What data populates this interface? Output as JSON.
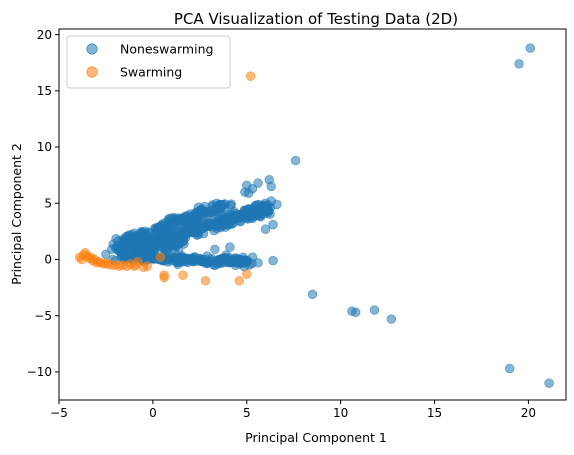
{
  "chart_data": {
    "type": "scatter",
    "title": "PCA Visualization of Testing Data (2D)",
    "xlabel": "Principal Component 1",
    "ylabel": "Principal Component 2",
    "xlim": [
      -5,
      22
    ],
    "ylim": [
      -12.5,
      20.5
    ],
    "xticks": [
      -5,
      0,
      5,
      10,
      15,
      20
    ],
    "yticks": [
      -10,
      -5,
      0,
      5,
      10,
      15,
      20
    ],
    "grid": false,
    "legend_position": "top-left",
    "series": [
      {
        "name": "Noneswarming",
        "color": "#1f77b4",
        "opacity": 0.55,
        "points": [
          [
            20.1,
            18.8
          ],
          [
            19.5,
            17.4
          ],
          [
            7.6,
            8.8
          ],
          [
            6.2,
            7.1
          ],
          [
            6.3,
            6.5
          ],
          [
            5.6,
            6.8
          ],
          [
            5.0,
            6.6
          ],
          [
            5.3,
            6.3
          ],
          [
            4.9,
            6.0
          ],
          [
            6.6,
            4.9
          ],
          [
            6.3,
            5.2
          ],
          [
            6.0,
            5.0
          ],
          [
            6.4,
            3.1
          ],
          [
            6.0,
            2.7
          ],
          [
            4.1,
            1.1
          ],
          [
            3.9,
            0.4
          ],
          [
            5.3,
            0.2
          ],
          [
            6.4,
            -0.1
          ],
          [
            5.6,
            -0.3
          ],
          [
            4.6,
            -0.4
          ],
          [
            8.5,
            -3.1
          ],
          [
            10.6,
            -4.6
          ],
          [
            10.8,
            -4.7
          ],
          [
            11.8,
            -4.5
          ],
          [
            12.7,
            -5.3
          ],
          [
            19.0,
            -9.7
          ],
          [
            21.1,
            -11.0
          ],
          [
            0.4,
            0.2
          ],
          [
            -1.5,
            0.6
          ],
          [
            3.1,
            -0.2
          ],
          [
            2.7,
            2.3
          ],
          [
            4.8,
            0.2
          ],
          [
            5.1,
            5.9
          ],
          [
            3.3,
            0.9
          ]
        ],
        "clusters": [
          {
            "x_start": -1.8,
            "y_start": 0.6,
            "x_end": 6.2,
            "y_end": 4.6,
            "spread": 0.55,
            "count": 360
          },
          {
            "x_start": -1.6,
            "y_start": 1.6,
            "x_end": 3.8,
            "y_end": 4.9,
            "spread": 0.45,
            "count": 160
          },
          {
            "x_start": -1.6,
            "y_start": 0.2,
            "x_end": 5.0,
            "y_end": -0.2,
            "spread": 0.35,
            "count": 200
          },
          {
            "x_start": -1.8,
            "y_start": 0.9,
            "x_end": 1.5,
            "y_end": 1.5,
            "spread": 0.6,
            "count": 150
          }
        ]
      },
      {
        "name": "Swarming",
        "color": "#ff7f0e",
        "opacity": 0.55,
        "points": [
          [
            5.2,
            16.3
          ],
          [
            -3.7,
            0.4
          ],
          [
            -3.6,
            0.6
          ],
          [
            -3.9,
            0.2
          ],
          [
            -3.4,
            0.1
          ],
          [
            -3.2,
            -0.1
          ],
          [
            -3.0,
            -0.3
          ],
          [
            -2.8,
            -0.3
          ],
          [
            -2.6,
            -0.4
          ],
          [
            -2.2,
            -0.5
          ],
          [
            -1.8,
            -0.6
          ],
          [
            -1.4,
            -0.6
          ],
          [
            -1.0,
            -0.6
          ],
          [
            -0.8,
            -0.2
          ],
          [
            -0.9,
            -0.5
          ],
          [
            0.6,
            -1.4
          ],
          [
            0.6,
            -1.6
          ],
          [
            1.6,
            -1.4
          ],
          [
            2.8,
            -1.9
          ],
          [
            4.6,
            -1.9
          ],
          [
            5.0,
            -1.3
          ],
          [
            0.4,
            0.2
          ],
          [
            -0.3,
            -0.6
          ],
          [
            -3.5,
            0.3
          ],
          [
            -3.3,
            0.2
          ],
          [
            -3.1,
            0.0
          ],
          [
            -2.9,
            -0.2
          ],
          [
            -2.4,
            -0.4
          ],
          [
            -2.0,
            -0.5
          ],
          [
            -1.6,
            -0.5
          ],
          [
            -1.2,
            -0.4
          ],
          [
            -3.8,
            0.0
          ],
          [
            -0.5,
            -0.7
          ],
          [
            -2.5,
            -0.3
          ]
        ]
      }
    ]
  }
}
